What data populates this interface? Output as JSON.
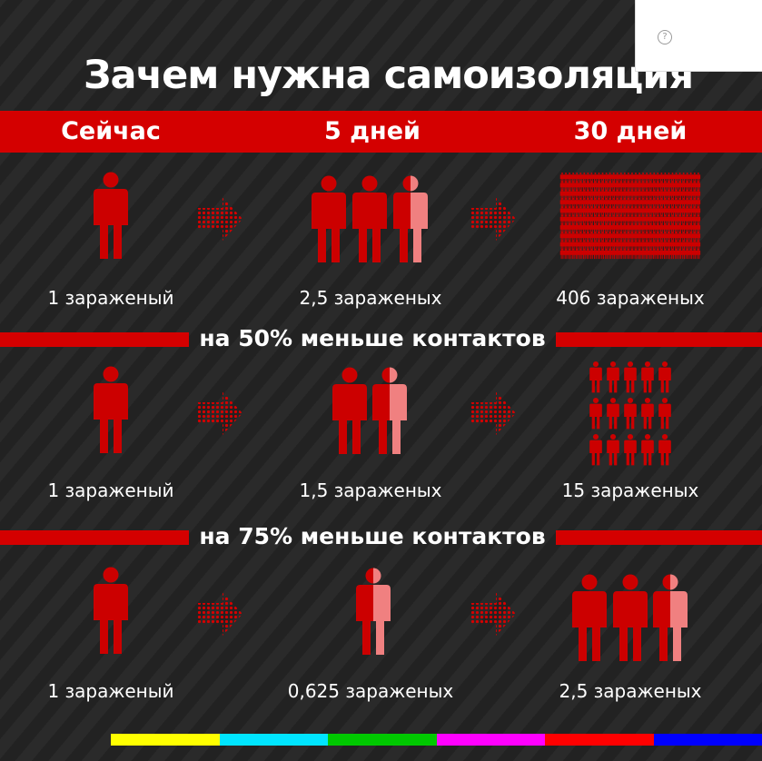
{
  "title": "Зачем нужна самоизоляция",
  "columns": [
    "Сейчас",
    "5 дней",
    "30 дней"
  ],
  "rows": [
    {
      "label": "",
      "captions": [
        "1 зараженый",
        "2,5 зараженых",
        "406 зараженых"
      ],
      "counts": [
        1,
        2.5,
        406
      ]
    },
    {
      "label": "на 50% меньше контактов",
      "captions": [
        "1 зараженый",
        "1,5 зараженых",
        "15 зараженых"
      ],
      "counts": [
        1,
        1.5,
        15
      ]
    },
    {
      "label": "на 75% меньше контактов",
      "captions": [
        "1 зараженый",
        "0,625 зараженых",
        "2,5 зараженых"
      ],
      "counts": [
        1,
        0.625,
        2.5
      ]
    }
  ],
  "popup": {
    "help_icon": "?"
  },
  "colors": {
    "accent": "#d40000",
    "figure": "#cc0000",
    "figure_light": "#f08080",
    "background": "#262626",
    "stripes": [
      "#ffff00",
      "#00e5ff",
      "#00c800",
      "#ff00ff",
      "#ff0000",
      "#0000ff"
    ]
  },
  "icons": [
    "person-icon",
    "arrow-right-icon",
    "help-icon"
  ]
}
